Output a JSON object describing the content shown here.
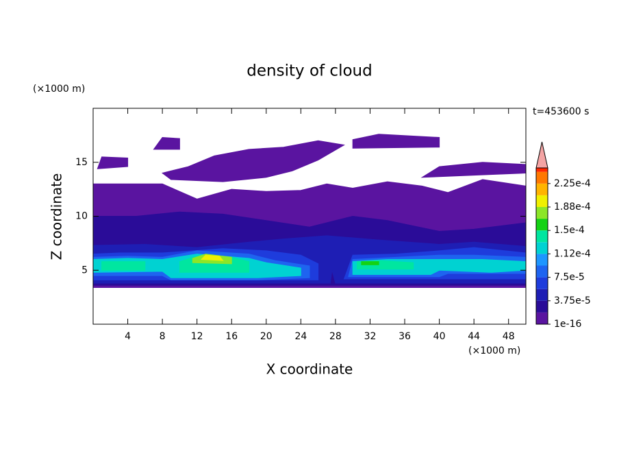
{
  "chart_data": {
    "type": "contour",
    "title": "density of cloud",
    "time_label": "t=453600 s",
    "x_label": "X coordinate",
    "y_label": "Z coordinate",
    "x_unit": "(×1000 m)",
    "y_unit": "(×1000 m)",
    "xlim": [
      0,
      50
    ],
    "ylim": [
      0,
      20
    ],
    "xticks": [
      4,
      8,
      12,
      16,
      20,
      24,
      28,
      32,
      36,
      40,
      44,
      48
    ],
    "yticks": [
      5,
      10,
      15
    ],
    "colorbar": {
      "lim": [
        0,
        0.00025
      ],
      "levels": [
        1e-16,
        1.875e-05,
        3.75e-05,
        5.625e-05,
        7.5e-05,
        9.375e-05,
        0.0001125,
        0.00013125,
        0.00015,
        0.00016875,
        0.0001875,
        0.00020625,
        0.000225,
        0.00024375
      ],
      "colors": [
        "#5a14a0",
        "#2a0c98",
        "#1e1eb4",
        "#1e3cdc",
        "#1e64f0",
        "#1e96ff",
        "#00d2d2",
        "#00e6a0",
        "#14d214",
        "#8ce628",
        "#f0f000",
        "#ffb400",
        "#ff7800",
        "#ff2800"
      ],
      "extend_color": "#f4a4a4",
      "ticks": [
        1e-16,
        {
          "value": 3.75e-05,
          "label": "3.75e-5"
        },
        {
          "value": 7.5e-05,
          "label": "7.5e-5"
        },
        {
          "value": 0.0001125,
          "label": "1.12e-4"
        },
        {
          "value": 0.00015,
          "label": "1.5e-4"
        },
        {
          "value": 0.0001875,
          "label": "1.88e-4"
        },
        {
          "value": 0.000225,
          "label": "2.25e-4"
        }
      ]
    },
    "regions": [
      {
        "value": 1e-16,
        "points": [
          [
            0,
            3.4
          ],
          [
            50,
            3.4
          ],
          [
            50,
            12.8
          ],
          [
            45,
            13.4
          ],
          [
            41,
            12.2
          ],
          [
            38,
            12.8
          ],
          [
            34,
            13.2
          ],
          [
            30,
            12.6
          ],
          [
            27,
            13
          ],
          [
            24,
            12.4
          ],
          [
            20,
            12.3
          ],
          [
            16,
            12.5
          ],
          [
            12,
            11.6
          ],
          [
            8,
            13
          ],
          [
            4,
            13
          ],
          [
            0,
            13
          ]
        ]
      },
      {
        "value": 1e-16,
        "points": [
          [
            9,
            13.4
          ],
          [
            15,
            13.2
          ],
          [
            20,
            13.6
          ],
          [
            23,
            14.2
          ],
          [
            26,
            15.2
          ],
          [
            29,
            16.6
          ],
          [
            26,
            17
          ],
          [
            22,
            16.4
          ],
          [
            18,
            16.2
          ],
          [
            14,
            15.6
          ],
          [
            11,
            14.6
          ],
          [
            8,
            14
          ]
        ]
      },
      {
        "value": 1e-16,
        "points": [
          [
            7,
            16.2
          ],
          [
            10,
            16.2
          ],
          [
            10,
            17.2
          ],
          [
            8,
            17.3
          ]
        ]
      },
      {
        "value": 1e-16,
        "points": [
          [
            30,
            16.3
          ],
          [
            40,
            16.4
          ],
          [
            40,
            17.3
          ],
          [
            33,
            17.6
          ],
          [
            30,
            17.1
          ]
        ]
      },
      {
        "value": 1e-16,
        "points": [
          [
            38,
            13.6
          ],
          [
            44,
            13.8
          ],
          [
            50,
            14
          ],
          [
            50,
            14.8
          ],
          [
            45,
            15
          ],
          [
            40,
            14.6
          ]
        ]
      },
      {
        "value": 1e-16,
        "points": [
          [
            0.5,
            14.4
          ],
          [
            4,
            14.6
          ],
          [
            4,
            15.4
          ],
          [
            1,
            15.5
          ]
        ]
      },
      {
        "value": 1.875e-05,
        "points": [
          [
            0,
            3.6
          ],
          [
            50,
            3.6
          ],
          [
            50,
            9.4
          ],
          [
            44,
            8.8
          ],
          [
            40,
            8.6
          ],
          [
            34,
            9.6
          ],
          [
            30,
            10
          ],
          [
            25,
            9
          ],
          [
            20,
            9.6
          ],
          [
            15,
            10.2
          ],
          [
            10,
            10.4
          ],
          [
            5,
            10
          ],
          [
            0,
            10
          ]
        ]
      },
      {
        "value": 3.75e-05,
        "points": [
          [
            0,
            3.8
          ],
          [
            27.4,
            3.8
          ],
          [
            27.6,
            5
          ],
          [
            28,
            3.8
          ],
          [
            50,
            3.8
          ],
          [
            50,
            7.2
          ],
          [
            44,
            7.6
          ],
          [
            40,
            7.4
          ],
          [
            33,
            7.8
          ],
          [
            27,
            8.2
          ],
          [
            22,
            7.9
          ],
          [
            18,
            7.6
          ],
          [
            12,
            7.1
          ],
          [
            6,
            7.4
          ],
          [
            0,
            7.3
          ]
        ]
      },
      {
        "value": 5.625e-05,
        "points": [
          [
            0,
            4.1
          ],
          [
            26,
            4.1
          ],
          [
            26,
            5.6
          ],
          [
            24,
            6.4
          ],
          [
            20,
            6.8
          ],
          [
            15,
            7
          ],
          [
            8,
            6.6
          ],
          [
            3,
            6.6
          ],
          [
            0,
            6.5
          ]
        ]
      },
      {
        "value": 5.625e-05,
        "points": [
          [
            29,
            4.2
          ],
          [
            50,
            4.2
          ],
          [
            50,
            6.6
          ],
          [
            44,
            7.1
          ],
          [
            40,
            6.8
          ],
          [
            35,
            6.5
          ],
          [
            30,
            6.4
          ]
        ]
      },
      {
        "value": 7.5e-05,
        "points": [
          [
            0,
            4.5
          ],
          [
            8,
            4.5
          ],
          [
            9,
            4.1
          ],
          [
            19,
            4.1
          ],
          [
            25,
            4.3
          ],
          [
            25,
            5.4
          ],
          [
            21,
            5.9
          ],
          [
            18,
            6.5
          ],
          [
            12,
            6.8
          ],
          [
            8,
            6.2
          ],
          [
            4,
            6.3
          ],
          [
            0,
            6.2
          ]
        ]
      },
      {
        "value": 7.5e-05,
        "points": [
          [
            29.5,
            4.4
          ],
          [
            40,
            4.4
          ],
          [
            41,
            4.7
          ],
          [
            50,
            4.7
          ],
          [
            50,
            6.2
          ],
          [
            44,
            6.4
          ],
          [
            40,
            6.4
          ],
          [
            35,
            6.2
          ],
          [
            30,
            6
          ]
        ]
      },
      {
        "value": 0.0001125,
        "points": [
          [
            0,
            4.8
          ],
          [
            8,
            4.9
          ],
          [
            9,
            4.3
          ],
          [
            19,
            4.3
          ],
          [
            24,
            4.5
          ],
          [
            24,
            5.2
          ],
          [
            20,
            5.7
          ],
          [
            18,
            6.1
          ],
          [
            12,
            6.5
          ],
          [
            8,
            6
          ],
          [
            4,
            6.1
          ],
          [
            0,
            6
          ]
        ]
      },
      {
        "value": 0.0001125,
        "points": [
          [
            30,
            4.6
          ],
          [
            39,
            4.6
          ],
          [
            40,
            5
          ],
          [
            46,
            4.8
          ],
          [
            50,
            5
          ],
          [
            50,
            5.8
          ],
          [
            45,
            6
          ],
          [
            40,
            6
          ],
          [
            34,
            6
          ],
          [
            30,
            5.8
          ]
        ]
      },
      {
        "value": 0.00013125,
        "points": [
          [
            1,
            5
          ],
          [
            6,
            5
          ],
          [
            6,
            5.8
          ],
          [
            1,
            5.8
          ]
        ]
      },
      {
        "value": 0.00013125,
        "points": [
          [
            10,
            4.8
          ],
          [
            18,
            4.8
          ],
          [
            18,
            5.8
          ],
          [
            16,
            6.2
          ],
          [
            12,
            6.3
          ],
          [
            10,
            5.8
          ]
        ]
      },
      {
        "value": 0.00013125,
        "points": [
          [
            30.5,
            5.1
          ],
          [
            37,
            5.1
          ],
          [
            37,
            5.7
          ],
          [
            33,
            5.9
          ],
          [
            30.5,
            5.8
          ]
        ]
      },
      {
        "value": 0.00016875,
        "points": [
          [
            11.5,
            5.7
          ],
          [
            16,
            5.6
          ],
          [
            16,
            6.2
          ],
          [
            13,
            6.5
          ],
          [
            11.5,
            6.1
          ]
        ]
      },
      {
        "value": 0.0001875,
        "points": [
          [
            12.5,
            6
          ],
          [
            15,
            5.9
          ],
          [
            14.6,
            6.3
          ],
          [
            13,
            6.4
          ]
        ]
      },
      {
        "value": 0.00015,
        "points": [
          [
            31,
            5.5
          ],
          [
            33,
            5.5
          ],
          [
            33,
            5.8
          ],
          [
            31,
            5.8
          ]
        ]
      }
    ]
  }
}
